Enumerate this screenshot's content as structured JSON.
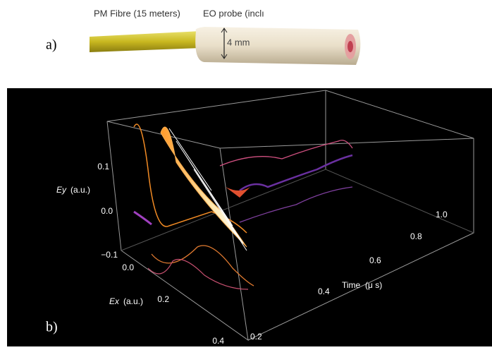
{
  "panel_a": {
    "label": "a)",
    "fibre_label": "PM Fibre (15 meters)",
    "probe_label": "EO probe (inclı",
    "dimension": "4 mm"
  },
  "panel_b": {
    "label": "b)",
    "y_axis": {
      "title": "Ey",
      "unit": "(a.u.)",
      "ticks": [
        "0.1",
        "0.0",
        "−0.1"
      ]
    },
    "x_axis": {
      "title": "Ex",
      "unit": "(a.u.)",
      "ticks": [
        "0.0",
        "0.2",
        "0.4"
      ]
    },
    "time_axis": {
      "title": "Time",
      "unit": "(μ s)",
      "ticks": [
        "0.2",
        "0.4",
        "0.6",
        "0.8",
        "1.0"
      ]
    }
  }
}
